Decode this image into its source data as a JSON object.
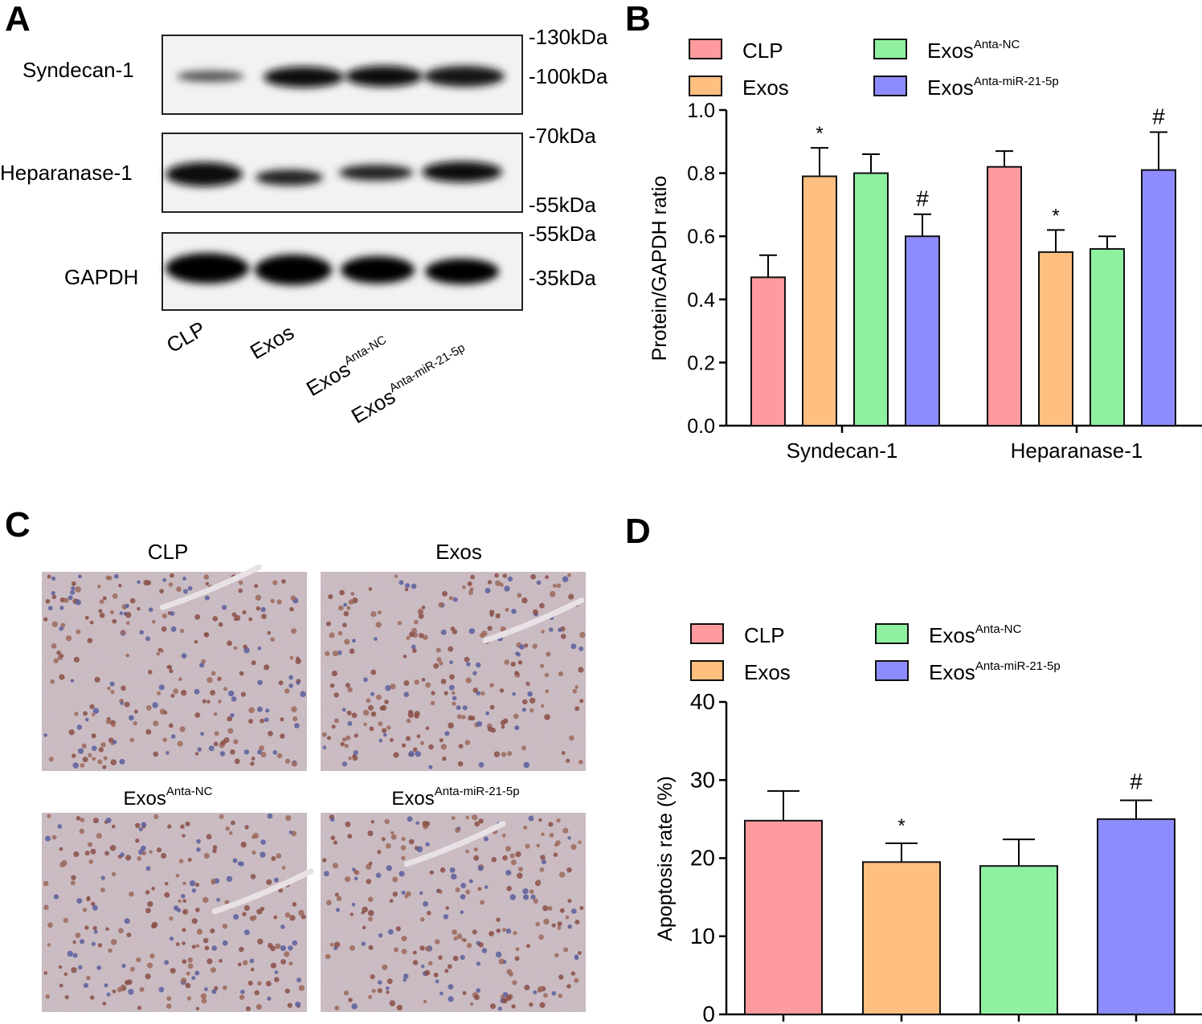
{
  "colors": {
    "CLP": "#ff9a9e",
    "Exos": "#ffbf80",
    "ExosAntaNC": "#8ef0a0",
    "ExosAntamiR": "#8c8cff"
  },
  "panel_a": {
    "letter": "A",
    "rows": [
      {
        "label": "Syndecan-1",
        "markers": [
          "-130kDa",
          "-100kDa"
        ]
      },
      {
        "label": "Heparanase-1",
        "markers": [
          "-70kDa",
          "-55kDa"
        ]
      },
      {
        "label": "GAPDH",
        "markers": [
          "-55kDa",
          "-35kDa"
        ]
      }
    ],
    "lanes": [
      {
        "base": "CLP",
        "sup": ""
      },
      {
        "base": "Exos",
        "sup": ""
      },
      {
        "base": "Exos",
        "sup": "Anta-NC"
      },
      {
        "base": "Exos",
        "sup": "Anta-miR-21-5p"
      }
    ]
  },
  "panel_c": {
    "letter": "C",
    "images": [
      {
        "base": "CLP",
        "sup": ""
      },
      {
        "base": "Exos",
        "sup": ""
      },
      {
        "base": "Exos",
        "sup": "Anta-NC"
      },
      {
        "base": "Exos",
        "sup": "Anta-miR-21-5p"
      }
    ]
  },
  "legend": [
    {
      "key": "CLP",
      "base": "CLP",
      "sup": ""
    },
    {
      "key": "Exos",
      "base": "Exos",
      "sup": ""
    },
    {
      "key": "ExosAntaNC",
      "base": "Exos",
      "sup": "Anta-NC"
    },
    {
      "key": "ExosAntamiR",
      "base": "Exos",
      "sup": "Anta-miR-21-5p"
    }
  ],
  "chart_data": [
    {
      "panel": "B",
      "type": "bar",
      "ylabel": "Protein/GAPDH ratio",
      "ylim": [
        0,
        1.0
      ],
      "yticks": [
        "0.0",
        "0.2",
        "0.4",
        "0.6",
        "0.8",
        "1.0"
      ],
      "categories": [
        "Syndecan-1",
        "Heparanase-1"
      ],
      "series": [
        {
          "key": "CLP",
          "values": [
            0.47,
            0.82
          ],
          "errors": [
            0.07,
            0.05
          ],
          "marks": [
            "",
            ""
          ]
        },
        {
          "key": "Exos",
          "values": [
            0.79,
            0.55
          ],
          "errors": [
            0.09,
            0.07
          ],
          "marks": [
            "*",
            "*"
          ]
        },
        {
          "key": "ExosAntaNC",
          "values": [
            0.8,
            0.56
          ],
          "errors": [
            0.06,
            0.04
          ],
          "marks": [
            "",
            ""
          ]
        },
        {
          "key": "ExosAntamiR",
          "values": [
            0.6,
            0.81
          ],
          "errors": [
            0.07,
            0.12
          ],
          "marks": [
            "#",
            "#"
          ]
        }
      ],
      "legend_position": "top"
    },
    {
      "panel": "D",
      "type": "bar",
      "ylabel": "Apoptosis rate (%)",
      "ylim": [
        0,
        40
      ],
      "yticks": [
        "0",
        "10",
        "20",
        "30",
        "40"
      ],
      "series": [
        {
          "key": "CLP",
          "value": 24.8,
          "error": 3.8,
          "mark": ""
        },
        {
          "key": "Exos",
          "value": 19.5,
          "error": 2.4,
          "mark": "*"
        },
        {
          "key": "ExosAntaNC",
          "value": 19.0,
          "error": 3.4,
          "mark": ""
        },
        {
          "key": "ExosAntamiR",
          "value": 25.0,
          "error": 2.4,
          "mark": "#"
        }
      ],
      "legend_position": "top"
    }
  ]
}
